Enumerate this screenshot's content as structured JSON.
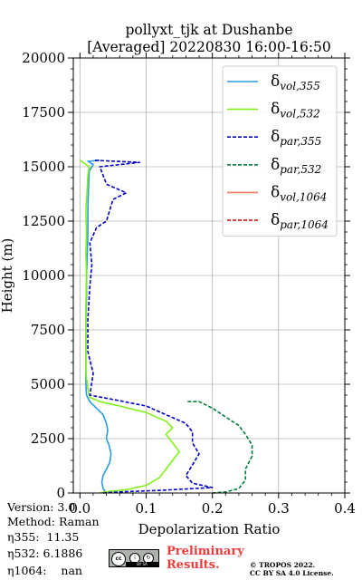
{
  "title": {
    "line1": "pollyxt_tjk at Dushanbe",
    "line2": "[Averaged] 20220830 16:00-16:50"
  },
  "info": {
    "version": "Version: 3.0",
    "method": "Method: Raman",
    "eta355": "η355:  11.35",
    "eta532": "η532: 6.1886",
    "eta1064": "η1064:    nan"
  },
  "preliminary": {
    "line1": "Preliminary",
    "line2": "Results."
  },
  "copyright": {
    "line1": "© TROPOS 2022.",
    "line2": "CC BY SA 4.0 License."
  },
  "badge": {
    "cc": "cc",
    "by": "BY",
    "sa": "SA"
  },
  "colors": {
    "vol355": "#2b9be3",
    "vol532": "#80f01a",
    "par355": "#0000cc",
    "par532": "#007f3f",
    "vol1064": "#f47a5e",
    "par1064": "#cc0000",
    "grid": "#b0b0b0",
    "preliminary": "#ef3b3b"
  },
  "chart_data": {
    "type": "line",
    "title": "pollyxt_tjk at Dushanbe\n[Averaged] 20220830 16:00-16:50",
    "xlabel": "Depolarization Ratio",
    "ylabel": "Height (m)",
    "xlim": [
      -0.01,
      0.4
    ],
    "ylim": [
      0,
      20000
    ],
    "xticks": [
      "0.0",
      "0.1",
      "0.2",
      "0.3",
      "0.4"
    ],
    "xtick_values": [
      0,
      0.1,
      0.2,
      0.3,
      0.4
    ],
    "yticks": [
      "0",
      "2500",
      "5000",
      "7500",
      "10000",
      "12500",
      "15000",
      "17500",
      "20000"
    ],
    "ytick_values": [
      0,
      2500,
      5000,
      7500,
      10000,
      12500,
      15000,
      17500,
      20000
    ],
    "grid": true,
    "legend_position": "top-right",
    "series": [
      {
        "name": "δvol,355",
        "legend_base": "δ",
        "legend_sub": "vol,355",
        "color_key": "vol355",
        "dashed": false,
        "points": [
          [
            0.04,
            0
          ],
          [
            0.035,
            200
          ],
          [
            0.033,
            500
          ],
          [
            0.035,
            800
          ],
          [
            0.04,
            1100
          ],
          [
            0.045,
            1400
          ],
          [
            0.047,
            1800
          ],
          [
            0.044,
            2200
          ],
          [
            0.04,
            2500
          ],
          [
            0.042,
            2900
          ],
          [
            0.04,
            3200
          ],
          [
            0.035,
            3600
          ],
          [
            0.025,
            3900
          ],
          [
            0.015,
            4200
          ],
          [
            0.01,
            4500
          ],
          [
            0.009,
            5000
          ],
          [
            0.009,
            6000
          ],
          [
            0.009,
            7000
          ],
          [
            0.009,
            8000
          ],
          [
            0.01,
            9000
          ],
          [
            0.01,
            10000
          ],
          [
            0.011,
            11000
          ],
          [
            0.012,
            12000
          ],
          [
            0.012,
            13000
          ],
          [
            0.013,
            14000
          ],
          [
            0.014,
            14800
          ],
          [
            0.02,
            15100
          ],
          [
            0.012,
            15250
          ],
          [
            0.03,
            15300
          ]
        ]
      },
      {
        "name": "δvol,532",
        "legend_base": "δ",
        "legend_sub": "vol,532",
        "color_key": "vol532",
        "dashed": false,
        "points": [
          [
            0.03,
            0
          ],
          [
            0.04,
            60
          ],
          [
            0.07,
            150
          ],
          [
            0.1,
            350
          ],
          [
            0.12,
            700
          ],
          [
            0.13,
            1100
          ],
          [
            0.14,
            1500
          ],
          [
            0.15,
            1900
          ],
          [
            0.14,
            2300
          ],
          [
            0.13,
            2700
          ],
          [
            0.14,
            3000
          ],
          [
            0.13,
            3300
          ],
          [
            0.1,
            3700
          ],
          [
            0.06,
            4000
          ],
          [
            0.03,
            4200
          ],
          [
            0.015,
            4400
          ],
          [
            0.012,
            4800
          ],
          [
            0.009,
            5500
          ],
          [
            0.009,
            7000
          ],
          [
            0.009,
            8500
          ],
          [
            0.01,
            10000
          ],
          [
            0.009,
            11000
          ],
          [
            0.01,
            12000
          ],
          [
            0.009,
            13000
          ],
          [
            0.011,
            14000
          ],
          [
            0.012,
            14600
          ],
          [
            0.014,
            15000
          ],
          [
            0.0,
            15300
          ]
        ]
      },
      {
        "name": "δpar,355",
        "legend_base": "δ",
        "legend_sub": "par,355",
        "color_key": "par355",
        "dashed": true,
        "points": [
          [
            0.035,
            0
          ],
          [
            0.06,
            50
          ],
          [
            0.12,
            120
          ],
          [
            0.2,
            250
          ],
          [
            0.17,
            450
          ],
          [
            0.16,
            800
          ],
          [
            0.17,
            1300
          ],
          [
            0.18,
            1800
          ],
          [
            0.17,
            2300
          ],
          [
            0.17,
            2800
          ],
          [
            0.16,
            3200
          ],
          [
            0.13,
            3600
          ],
          [
            0.1,
            4000
          ],
          [
            0.05,
            4300
          ],
          [
            0.015,
            4500
          ],
          [
            0.02,
            5500
          ],
          [
            0.012,
            6500
          ],
          [
            0.012,
            8000
          ],
          [
            0.015,
            9500
          ],
          [
            0.018,
            10500
          ],
          [
            0.015,
            11500
          ],
          [
            0.025,
            12200
          ],
          [
            0.04,
            12500
          ],
          [
            0.05,
            13500
          ],
          [
            0.07,
            13800
          ],
          [
            0.04,
            14200
          ],
          [
            0.03,
            15000
          ],
          [
            0.09,
            15200
          ],
          [
            0.02,
            15300
          ]
        ]
      },
      {
        "name": "δpar,532",
        "legend_base": "δ",
        "legend_sub": "par,532",
        "color_key": "par532",
        "dashed": true,
        "points": [
          [
            0.2,
            0
          ],
          [
            0.22,
            50
          ],
          [
            0.24,
            200
          ],
          [
            0.25,
            600
          ],
          [
            0.25,
            1100
          ],
          [
            0.26,
            1700
          ],
          [
            0.26,
            2200
          ],
          [
            0.25,
            2700
          ],
          [
            0.24,
            3100
          ],
          [
            0.22,
            3500
          ],
          [
            0.2,
            3900
          ],
          [
            0.18,
            4200
          ],
          [
            0.16,
            4200
          ]
        ]
      },
      {
        "name": "δvol,1064",
        "legend_base": "δ",
        "legend_sub": "vol,1064",
        "color_key": "vol1064",
        "dashed": false,
        "points": []
      },
      {
        "name": "δpar,1064",
        "legend_base": "δ",
        "legend_sub": "par,1064",
        "color_key": "par1064",
        "dashed": true,
        "points": []
      }
    ]
  }
}
